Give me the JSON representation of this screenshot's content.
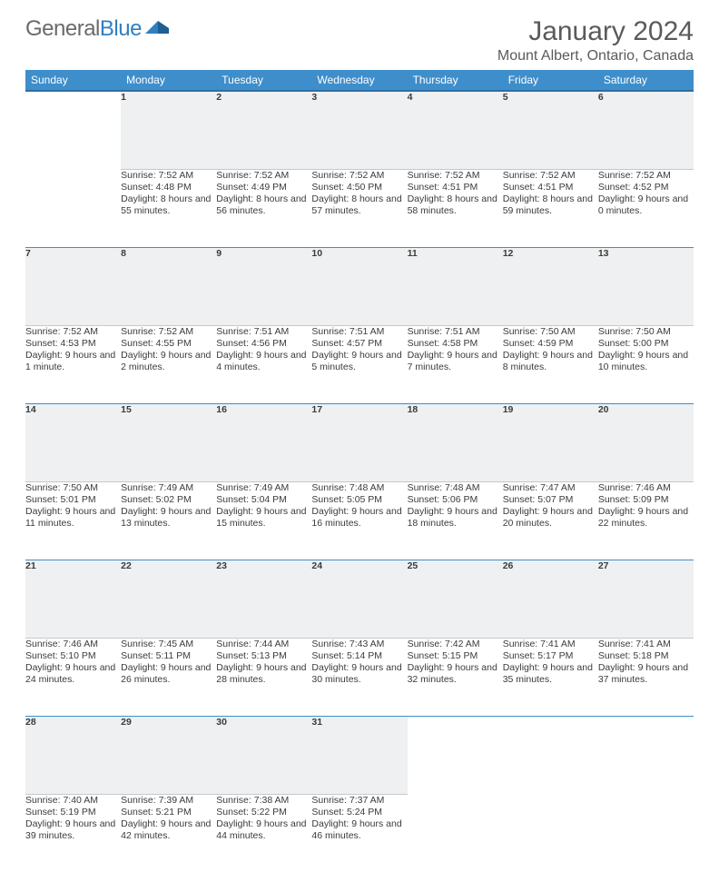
{
  "brand": {
    "part1": "General",
    "part2": "Blue"
  },
  "title": "January 2024",
  "location": "Mount Albert, Ontario, Canada",
  "style": {
    "header_bg": "#3e8ecb",
    "header_border": "#2f6fa3",
    "row_accent": "#3e8ecb",
    "daynum_bg": "#eef0f1",
    "text_color": "#3b3b3b",
    "page_bg": "#ffffff",
    "title_fontsize": 30,
    "location_fontsize": 16,
    "dayheader_fontsize": 12,
    "cell_fontsize": 10.5
  },
  "weekdays": [
    "Sunday",
    "Monday",
    "Tuesday",
    "Wednesday",
    "Thursday",
    "Friday",
    "Saturday"
  ],
  "weeks": [
    [
      null,
      {
        "n": "1",
        "sr": "7:52 AM",
        "ss": "4:48 PM",
        "dl": "8 hours and 55 minutes."
      },
      {
        "n": "2",
        "sr": "7:52 AM",
        "ss": "4:49 PM",
        "dl": "8 hours and 56 minutes."
      },
      {
        "n": "3",
        "sr": "7:52 AM",
        "ss": "4:50 PM",
        "dl": "8 hours and 57 minutes."
      },
      {
        "n": "4",
        "sr": "7:52 AM",
        "ss": "4:51 PM",
        "dl": "8 hours and 58 minutes."
      },
      {
        "n": "5",
        "sr": "7:52 AM",
        "ss": "4:51 PM",
        "dl": "8 hours and 59 minutes."
      },
      {
        "n": "6",
        "sr": "7:52 AM",
        "ss": "4:52 PM",
        "dl": "9 hours and 0 minutes."
      }
    ],
    [
      {
        "n": "7",
        "sr": "7:52 AM",
        "ss": "4:53 PM",
        "dl": "9 hours and 1 minute."
      },
      {
        "n": "8",
        "sr": "7:52 AM",
        "ss": "4:55 PM",
        "dl": "9 hours and 2 minutes."
      },
      {
        "n": "9",
        "sr": "7:51 AM",
        "ss": "4:56 PM",
        "dl": "9 hours and 4 minutes."
      },
      {
        "n": "10",
        "sr": "7:51 AM",
        "ss": "4:57 PM",
        "dl": "9 hours and 5 minutes."
      },
      {
        "n": "11",
        "sr": "7:51 AM",
        "ss": "4:58 PM",
        "dl": "9 hours and 7 minutes."
      },
      {
        "n": "12",
        "sr": "7:50 AM",
        "ss": "4:59 PM",
        "dl": "9 hours and 8 minutes."
      },
      {
        "n": "13",
        "sr": "7:50 AM",
        "ss": "5:00 PM",
        "dl": "9 hours and 10 minutes."
      }
    ],
    [
      {
        "n": "14",
        "sr": "7:50 AM",
        "ss": "5:01 PM",
        "dl": "9 hours and 11 minutes."
      },
      {
        "n": "15",
        "sr": "7:49 AM",
        "ss": "5:02 PM",
        "dl": "9 hours and 13 minutes."
      },
      {
        "n": "16",
        "sr": "7:49 AM",
        "ss": "5:04 PM",
        "dl": "9 hours and 15 minutes."
      },
      {
        "n": "17",
        "sr": "7:48 AM",
        "ss": "5:05 PM",
        "dl": "9 hours and 16 minutes."
      },
      {
        "n": "18",
        "sr": "7:48 AM",
        "ss": "5:06 PM",
        "dl": "9 hours and 18 minutes."
      },
      {
        "n": "19",
        "sr": "7:47 AM",
        "ss": "5:07 PM",
        "dl": "9 hours and 20 minutes."
      },
      {
        "n": "20",
        "sr": "7:46 AM",
        "ss": "5:09 PM",
        "dl": "9 hours and 22 minutes."
      }
    ],
    [
      {
        "n": "21",
        "sr": "7:46 AM",
        "ss": "5:10 PM",
        "dl": "9 hours and 24 minutes."
      },
      {
        "n": "22",
        "sr": "7:45 AM",
        "ss": "5:11 PM",
        "dl": "9 hours and 26 minutes."
      },
      {
        "n": "23",
        "sr": "7:44 AM",
        "ss": "5:13 PM",
        "dl": "9 hours and 28 minutes."
      },
      {
        "n": "24",
        "sr": "7:43 AM",
        "ss": "5:14 PM",
        "dl": "9 hours and 30 minutes."
      },
      {
        "n": "25",
        "sr": "7:42 AM",
        "ss": "5:15 PM",
        "dl": "9 hours and 32 minutes."
      },
      {
        "n": "26",
        "sr": "7:41 AM",
        "ss": "5:17 PM",
        "dl": "9 hours and 35 minutes."
      },
      {
        "n": "27",
        "sr": "7:41 AM",
        "ss": "5:18 PM",
        "dl": "9 hours and 37 minutes."
      }
    ],
    [
      {
        "n": "28",
        "sr": "7:40 AM",
        "ss": "5:19 PM",
        "dl": "9 hours and 39 minutes."
      },
      {
        "n": "29",
        "sr": "7:39 AM",
        "ss": "5:21 PM",
        "dl": "9 hours and 42 minutes."
      },
      {
        "n": "30",
        "sr": "7:38 AM",
        "ss": "5:22 PM",
        "dl": "9 hours and 44 minutes."
      },
      {
        "n": "31",
        "sr": "7:37 AM",
        "ss": "5:24 PM",
        "dl": "9 hours and 46 minutes."
      },
      null,
      null,
      null
    ]
  ],
  "labels": {
    "sunrise": "Sunrise:",
    "sunset": "Sunset:",
    "daylight": "Daylight:"
  }
}
